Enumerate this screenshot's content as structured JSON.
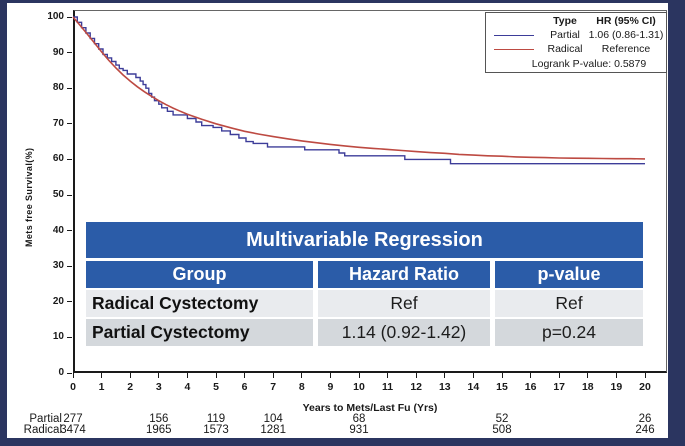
{
  "colors": {
    "navy_border": "#2b3560",
    "table_blue": "#2b5ca8",
    "partial_line": "#3d3d99",
    "radical_line": "#bd4a42"
  },
  "legend": {
    "col1_header": "Type",
    "col2_header": "HR (95% CI)",
    "rows": [
      {
        "series": "Partial",
        "value": "1.06 (0.86-1.31)"
      },
      {
        "series": "Radical",
        "value": "Reference"
      }
    ],
    "footer": "Logrank P-value: 0.5879"
  },
  "regression_table": {
    "title": "Multivariable Regression",
    "headers": [
      "Group",
      "Hazard Ratio",
      "p-value"
    ],
    "rows": [
      [
        "Radical Cystectomy",
        "Ref",
        "Ref"
      ],
      [
        "Partial Cystectomy",
        "1.14 (0.92-1.42)",
        "p=0.24"
      ]
    ]
  },
  "at_risk": {
    "years": [
      0,
      3,
      5,
      7,
      10,
      15,
      20
    ],
    "rows": [
      {
        "label": "Partial",
        "counts": [
          "277",
          "156",
          "119",
          "104",
          "68",
          "52",
          "26"
        ]
      },
      {
        "label": "Radical",
        "counts": [
          "3474",
          "1965",
          "1573",
          "1281",
          "931",
          "508",
          "246"
        ]
      }
    ]
  },
  "chart_data": {
    "type": "line",
    "title": "",
    "xlabel": "Years to Mets/Last Fu (Yrs)",
    "ylabel": "Mets free Survival(%)",
    "xlim": [
      0,
      20
    ],
    "ylim": [
      0,
      100
    ],
    "grid": false,
    "legend_position": "top-right",
    "x_ticks": [
      0,
      1,
      2,
      3,
      4,
      5,
      6,
      7,
      8,
      9,
      10,
      11,
      12,
      13,
      14,
      15,
      16,
      17,
      18,
      19,
      20
    ],
    "y_ticks": [
      0,
      10,
      20,
      30,
      40,
      50,
      60,
      70,
      80,
      90,
      100
    ],
    "series": [
      {
        "name": "Partial",
        "color": "#3d3d99",
        "style": "step",
        "width": 1.4,
        "points": [
          [
            0,
            100
          ],
          [
            0.15,
            98.5
          ],
          [
            0.3,
            97
          ],
          [
            0.45,
            95.5
          ],
          [
            0.6,
            94
          ],
          [
            0.75,
            92.5
          ],
          [
            0.9,
            91
          ],
          [
            1.05,
            89.5
          ],
          [
            1.2,
            88.5
          ],
          [
            1.35,
            87.5
          ],
          [
            1.5,
            86.5
          ],
          [
            1.62,
            85.5
          ],
          [
            1.75,
            85
          ],
          [
            1.9,
            84
          ],
          [
            2.2,
            83
          ],
          [
            2.35,
            82
          ],
          [
            2.45,
            81
          ],
          [
            2.55,
            80
          ],
          [
            2.65,
            78.5
          ],
          [
            2.75,
            77.5
          ],
          [
            2.85,
            76.5
          ],
          [
            3.0,
            75.5
          ],
          [
            3.1,
            74.5
          ],
          [
            3.3,
            73.5
          ],
          [
            3.5,
            72.5
          ],
          [
            4.0,
            71.5
          ],
          [
            4.3,
            70.5
          ],
          [
            4.5,
            69.5
          ],
          [
            4.9,
            69
          ],
          [
            5.2,
            68
          ],
          [
            5.5,
            67
          ],
          [
            5.8,
            66
          ],
          [
            6.05,
            65
          ],
          [
            6.3,
            64.5
          ],
          [
            6.8,
            63.5
          ],
          [
            8.1,
            62.7
          ],
          [
            9.3,
            61.8
          ],
          [
            9.5,
            61.0
          ],
          [
            11.6,
            60.0
          ],
          [
            13.2,
            58.8
          ],
          [
            20,
            58.8
          ]
        ]
      },
      {
        "name": "Radical",
        "color": "#bd4a42",
        "style": "line",
        "width": 1.6,
        "points": [
          [
            0,
            100
          ],
          [
            0.25,
            97.6
          ],
          [
            0.5,
            95.2
          ],
          [
            0.75,
            92.7
          ],
          [
            1,
            90.2
          ],
          [
            1.25,
            87.8
          ],
          [
            1.5,
            85.7
          ],
          [
            1.75,
            83.7
          ],
          [
            2,
            82
          ],
          [
            2.25,
            80.4
          ],
          [
            2.5,
            79
          ],
          [
            2.75,
            77.7
          ],
          [
            3,
            76.5
          ],
          [
            3.25,
            75.4
          ],
          [
            3.5,
            74.4
          ],
          [
            3.75,
            73.5
          ],
          [
            4,
            72.7
          ],
          [
            4.5,
            71.3
          ],
          [
            5,
            70
          ],
          [
            5.5,
            68.9
          ],
          [
            6,
            67.9
          ],
          [
            6.5,
            67.1
          ],
          [
            7,
            66.4
          ],
          [
            7.5,
            65.8
          ],
          [
            8,
            65.2
          ],
          [
            8.5,
            64.7
          ],
          [
            9,
            64.2
          ],
          [
            9.5,
            63.8
          ],
          [
            10,
            63.4
          ],
          [
            10.5,
            63.1
          ],
          [
            11,
            62.8
          ],
          [
            11.5,
            62.5
          ],
          [
            12,
            62.2
          ],
          [
            12.5,
            61.9
          ],
          [
            13,
            61.7
          ],
          [
            13.5,
            61.4
          ],
          [
            14,
            61.2
          ],
          [
            14.5,
            61.0
          ],
          [
            15,
            60.9
          ],
          [
            15.5,
            60.7
          ],
          [
            16,
            60.6
          ],
          [
            16.5,
            60.5
          ],
          [
            17,
            60.4
          ],
          [
            17.5,
            60.35
          ],
          [
            18,
            60.3
          ],
          [
            18.5,
            60.25
          ],
          [
            19,
            60.2
          ],
          [
            19.5,
            60.2
          ],
          [
            20,
            60.15
          ]
        ]
      }
    ]
  }
}
